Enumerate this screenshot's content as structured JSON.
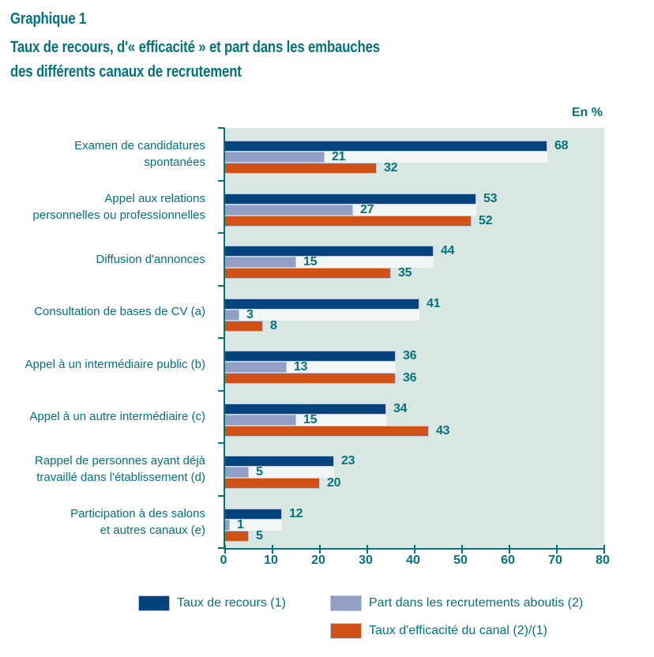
{
  "title": {
    "kicker": "Graphique 1",
    "line1": "Taux de recours, d'« efficacité » et part dans les embauches",
    "line2": "des différents canaux de recrutement"
  },
  "unit_label": "En %",
  "colors": {
    "teal_text": "#00737E",
    "plot_background": "#D9E7E3",
    "axis": "#00737E",
    "series_track": "#F2F6F4",
    "bar_border": "#BCC9DF",
    "page_background": "#FFFFFF"
  },
  "chart_data": {
    "type": "bar",
    "orientation": "horizontal",
    "title": "Graphique 1 — Taux de recours, d'« efficacité » et part dans les embauches des différents canaux de recrutement",
    "unit": "En %",
    "xlabel": "",
    "ylabel": "",
    "xlim": [
      0,
      80
    ],
    "x_ticks": [
      0,
      10,
      20,
      30,
      40,
      50,
      60,
      70,
      80
    ],
    "grid": false,
    "value_labels": true,
    "legend_position": "bottom",
    "categories": [
      "Examen de candidatures\nspontanées",
      "Appel aux relations\npersonnelles ou professionnelles",
      "Diffusion d'annonces",
      "Consultation de bases de CV (a)",
      "Appel à un intermédiaire public (b)",
      "Appel à un autre intermédiaire (c)",
      "Rappel de personnes ayant déjà\ntravaillé dans l'établissement (d)",
      "Participation à des salons\net autres canaux (e)"
    ],
    "series": [
      {
        "name": "Taux de recours (1)",
        "color": "#04437E",
        "values": [
          68,
          53,
          44,
          41,
          36,
          34,
          23,
          12
        ]
      },
      {
        "name": "Part dans les recrutements aboutis (2)",
        "color": "#919EC6",
        "values": [
          21,
          27,
          15,
          3,
          13,
          15,
          5,
          1
        ]
      },
      {
        "name": "Taux d'efficacité du canal (2)/(1)",
        "color": "#D05217",
        "values": [
          32,
          52,
          35,
          8,
          36,
          43,
          20,
          5
        ]
      }
    ]
  }
}
